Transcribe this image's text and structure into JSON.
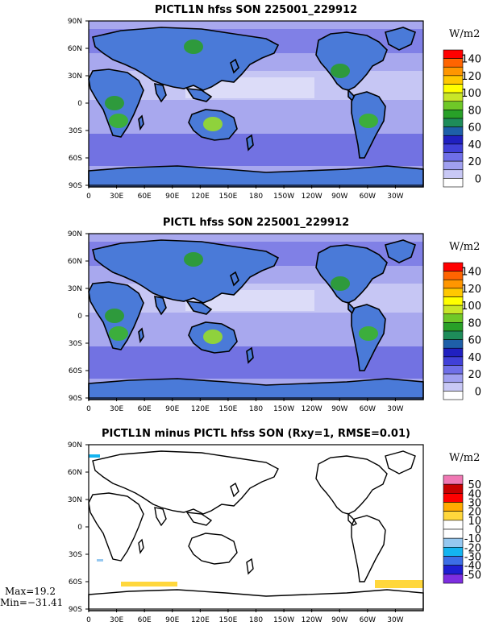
{
  "lon_labels": [
    "0",
    "30E",
    "60E",
    "90E",
    "120E",
    "150E",
    "180",
    "150W",
    "120W",
    "90W",
    "60W",
    "30W"
  ],
  "lat_labels": [
    "90N",
    "60N",
    "30N",
    "0",
    "30S",
    "60S",
    "90S"
  ],
  "panels": [
    {
      "title": "PICTL1N hfss SON 225001_229912",
      "units": "W/m2",
      "colorbar": {
        "colors": [
          "#ffffff",
          "#c8c8f5",
          "#a0a0f0",
          "#6f6fe8",
          "#4040d8",
          "#2020c0",
          "#1e5fa8",
          "#1e8c5a",
          "#28a028",
          "#6fc828",
          "#c8e628",
          "#ffff00",
          "#ffc800",
          "#ff9600",
          "#ff6400",
          "#ff0000"
        ],
        "labels": [
          "0",
          "20",
          "40",
          "60",
          "80",
          "100",
          "120",
          "140"
        ]
      }
    },
    {
      "title": "PICTL hfss SON 225001_229912",
      "units": "W/m2",
      "colorbar": {
        "colors": [
          "#ffffff",
          "#c8c8f5",
          "#a0a0f0",
          "#6f6fe8",
          "#4040d8",
          "#2020c0",
          "#1e5fa8",
          "#1e8c5a",
          "#28a028",
          "#6fc828",
          "#c8e628",
          "#ffff00",
          "#ffc800",
          "#ff9600",
          "#ff6400",
          "#ff0000"
        ],
        "labels": [
          "0",
          "20",
          "40",
          "60",
          "80",
          "100",
          "120",
          "140"
        ]
      }
    },
    {
      "title": "PICTL1N minus PICTL hfss SON (Rxy=1, RMSE=0.01)",
      "units": "W/m2",
      "colorbar": {
        "colors": [
          "#7d2ee0",
          "#1e1ed2",
          "#3c6ee6",
          "#14b4f0",
          "#96c8f0",
          "#ffffff",
          "#ffffff",
          "#ffd73c",
          "#ffaa00",
          "#ff0000",
          "#c80000",
          "#f078b4"
        ],
        "labels": [
          "-50",
          "-40",
          "-30",
          "-20",
          "-10",
          "0",
          "10",
          "20",
          "30",
          "40",
          "50"
        ]
      },
      "stats": {
        "max": "Max=19.2",
        "min": "Min=−31.41"
      }
    }
  ]
}
